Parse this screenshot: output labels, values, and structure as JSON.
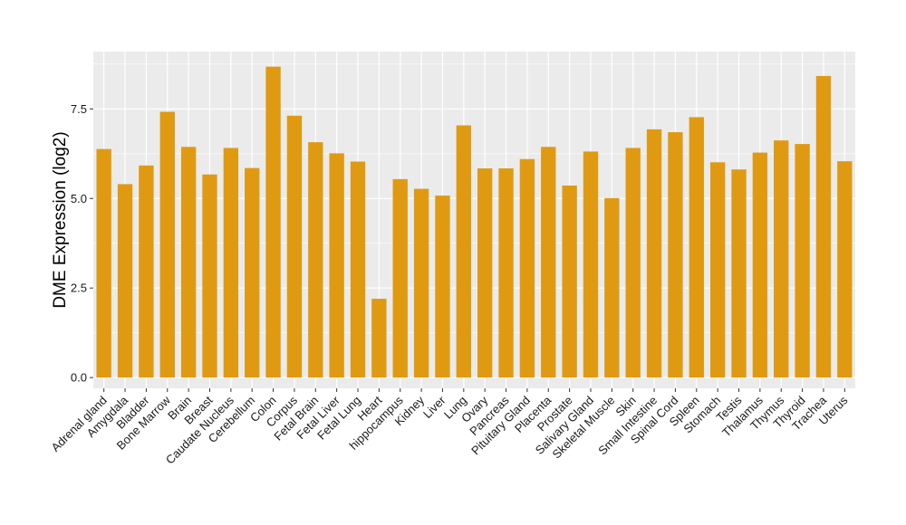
{
  "chart_data": {
    "type": "bar",
    "title": "",
    "xlabel": "",
    "ylabel": "DME Expression (log2)",
    "ylim": [
      -0.3,
      9.1
    ],
    "yticks": [
      0.0,
      2.5,
      5.0,
      7.5
    ],
    "ytick_labels": [
      "0.0",
      "2.5",
      "5.0",
      "7.5"
    ],
    "grid": true,
    "bar_color": "#E09A12",
    "panel_color": "#EBEBEB",
    "grid_color": "#FFFFFF",
    "categories": [
      "Adrenal gland",
      "Amygdala",
      "Bladder",
      "Bone Marrow",
      "Brain",
      "Breast",
      "Caudate Nucleus",
      "Cerebellum",
      "Colon",
      "Corpus",
      "Fetal Brain",
      "Fetal Liver",
      "Fetal Lung",
      "Heart",
      "hippocampus",
      "Kidney",
      "Liver",
      "Lung",
      "Ovary",
      "Pancreas",
      "Pituitary Gland",
      "Placenta",
      "Prostate",
      "Salivary Gland",
      "Skeletal Muscle",
      "Skin",
      "Small Intestine",
      "Spinal Cord",
      "Spleen",
      "Stomach",
      "Testis",
      "Thalamus",
      "Thymus",
      "Thyroid",
      "Trachea",
      "Uterus"
    ],
    "values": [
      6.38,
      5.4,
      5.92,
      7.42,
      6.44,
      5.67,
      6.41,
      5.85,
      8.68,
      7.31,
      6.57,
      6.26,
      6.03,
      2.2,
      5.54,
      5.27,
      5.08,
      7.04,
      5.84,
      5.84,
      6.1,
      6.44,
      5.36,
      6.31,
      5.01,
      6.41,
      6.93,
      6.85,
      7.27,
      6.01,
      5.81,
      6.28,
      6.62,
      6.52,
      8.42,
      6.04
    ]
  }
}
